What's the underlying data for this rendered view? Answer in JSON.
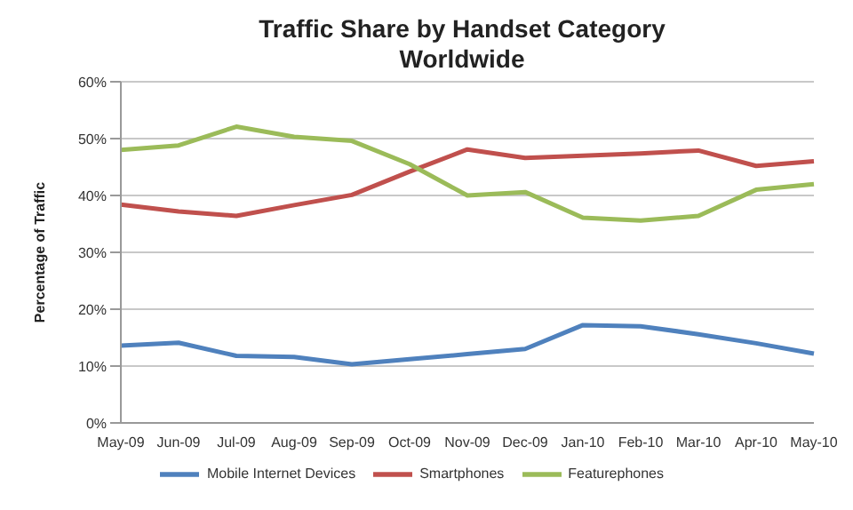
{
  "chart_data": {
    "type": "line",
    "title": "Traffic Share by Handset Category\nWorldwide",
    "ylabel": "Percentage of Traffic",
    "categories": [
      "May-09",
      "Jun-09",
      "Jul-09",
      "Aug-09",
      "Sep-09",
      "Oct-09",
      "Nov-09",
      "Dec-09",
      "Jan-10",
      "Feb-10",
      "Mar-10",
      "Apr-10",
      "May-10"
    ],
    "series": [
      {
        "name": "Mobile Internet Devices",
        "color": "#4f81bd",
        "values": [
          13.6,
          14.1,
          11.8,
          11.6,
          10.3,
          11.2,
          12.1,
          13.0,
          17.2,
          17.0,
          15.6,
          14.0,
          12.2
        ]
      },
      {
        "name": "Smartphones",
        "color": "#c0504d",
        "values": [
          38.4,
          37.2,
          36.4,
          38.3,
          40.1,
          44.2,
          48.1,
          46.6,
          47.0,
          47.4,
          47.9,
          45.2,
          46.0
        ]
      },
      {
        "name": "Featurephones",
        "color": "#9bbb59",
        "values": [
          48.0,
          48.8,
          52.1,
          50.3,
          49.6,
          45.5,
          40.0,
          40.6,
          36.1,
          35.6,
          36.4,
          41.0,
          42.0
        ]
      }
    ],
    "ylim": [
      0,
      60
    ],
    "yticks": [
      {
        "value": 0,
        "label": "0%"
      },
      {
        "value": 10,
        "label": "10%"
      },
      {
        "value": 20,
        "label": "20%"
      },
      {
        "value": 30,
        "label": "30%"
      },
      {
        "value": 40,
        "label": "40%"
      },
      {
        "value": 50,
        "label": "50%"
      },
      {
        "value": 60,
        "label": "60%"
      }
    ],
    "grid": "y",
    "legend": "bottom",
    "marker": "none",
    "line_style": "solid"
  }
}
